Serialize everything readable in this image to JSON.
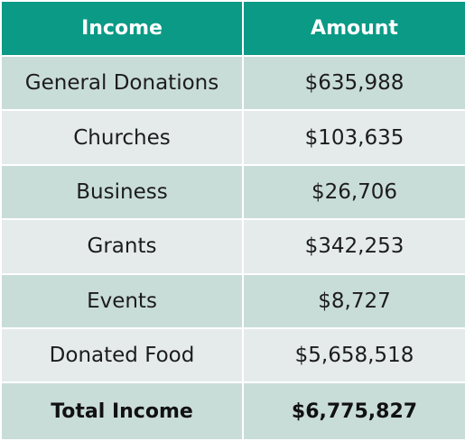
{
  "table": {
    "headers": {
      "income": "Income",
      "amount": "Amount"
    },
    "rows": [
      {
        "income": "General Donations",
        "amount": "$635,988"
      },
      {
        "income": "Churches",
        "amount": "$103,635"
      },
      {
        "income": "Business",
        "amount": "$26,706"
      },
      {
        "income": "Grants",
        "amount": "$342,253"
      },
      {
        "income": "Events",
        "amount": "$8,727"
      },
      {
        "income": "Donated Food",
        "amount": "$5,658,518"
      }
    ],
    "total": {
      "label": "Total Income",
      "amount": "$6,775,827"
    }
  },
  "colors": {
    "header": "#0a9a86",
    "row_dark": "#c9ddd8",
    "row_light": "#e4ebea",
    "border": "#ffffff"
  }
}
